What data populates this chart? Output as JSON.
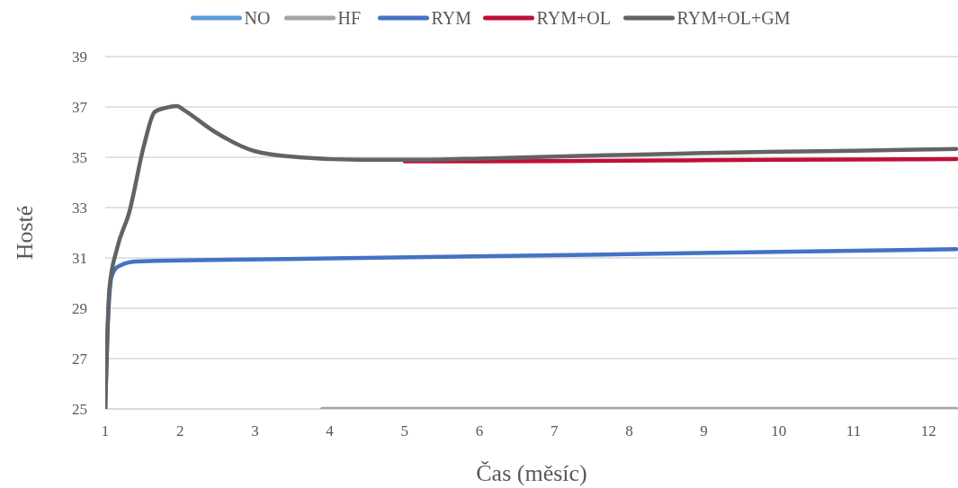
{
  "chart_data": {
    "type": "line",
    "xlabel": "Čas (měsíc)",
    "ylabel": "Hosté",
    "xlim": [
      1,
      12.37
    ],
    "xticks": [
      1,
      2,
      3,
      4,
      5,
      6,
      7,
      8,
      9,
      10,
      11,
      12
    ],
    "ylim": [
      25,
      39
    ],
    "yticks": [
      25,
      27,
      29,
      31,
      33,
      35,
      37,
      39
    ],
    "grid": "y",
    "legend": "top",
    "line_style": "solid",
    "series": [
      {
        "name": "NO",
        "color": "#5b9bd5"
      },
      {
        "name": "HF",
        "color": "#a5a5a5",
        "x": [
          3.9,
          4.1,
          5,
          6,
          7,
          8,
          9,
          10,
          11,
          12,
          12.37
        ],
        "values": [
          25,
          25,
          25,
          25,
          25,
          25,
          25,
          25,
          25,
          25,
          25
        ]
      },
      {
        "name": "RYM",
        "color": "#4472c4",
        "x": [
          1,
          1.03,
          1.08,
          1.13,
          1.2,
          1.4,
          2,
          4,
          8,
          12.37
        ],
        "values": [
          25,
          28,
          30.2,
          30.55,
          30.7,
          30.86,
          30.9,
          30.98,
          31.15,
          31.35
        ]
      },
      {
        "name": "RYM+OL",
        "color": "#c00f39",
        "x": [
          5,
          6,
          7,
          8,
          9,
          10,
          11,
          12.37
        ],
        "values": [
          34.84,
          34.84,
          34.85,
          34.87,
          34.88,
          34.9,
          34.91,
          34.93
        ]
      },
      {
        "name": "RYM+OL+GM",
        "color": "#636363",
        "x": [
          1,
          1.056,
          1.156,
          1.32,
          1.52,
          1.66,
          1.8,
          1.96,
          2.06,
          2.47,
          2.99,
          3.59,
          4.39,
          5,
          6,
          7,
          8,
          9,
          10,
          11,
          12.37
        ],
        "values": [
          25,
          29.8,
          31.36,
          32.8,
          35.5,
          36.8,
          36.96,
          37.04,
          36.86,
          36.0,
          35.25,
          35.0,
          34.9,
          34.9,
          34.95,
          35.03,
          35.1,
          35.17,
          35.22,
          35.26,
          35.33
        ]
      }
    ]
  }
}
